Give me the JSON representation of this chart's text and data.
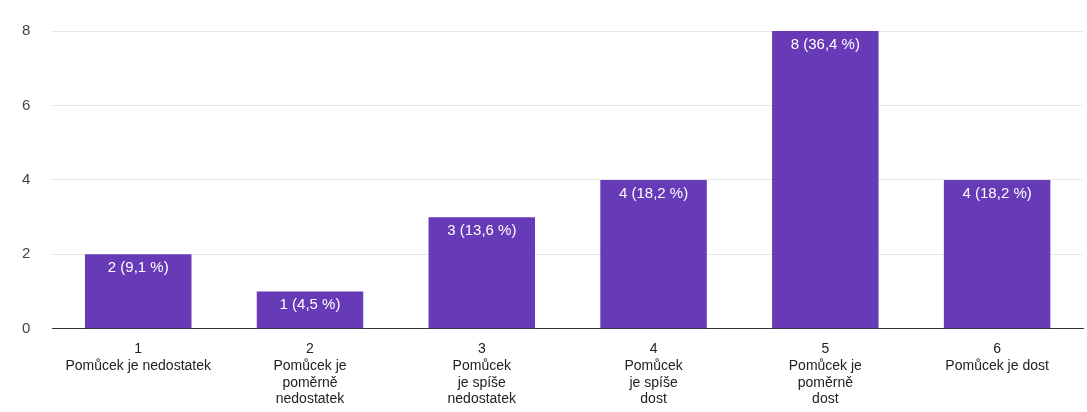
{
  "chart_data": {
    "type": "bar",
    "categories": [
      "1\nPomůcek je nedostatek",
      "2\nPomůcek je\npoměrně\nnedostatek",
      "3\nPomůcek\nje spíše\nnedostatek",
      "4\nPomůcek\nje spíše\ndost",
      "5\nPomůcek je\npoměrně\ndost",
      "6\nPomůcek je dost"
    ],
    "values": [
      2,
      1,
      3,
      4,
      8,
      4
    ],
    "value_labels": [
      "2 (9,1 %)",
      "1 (4,5 %)",
      "3 (13,6 %)",
      "4 (18,2 %)",
      "8 (36,4 %)",
      "4 (18,2 %)"
    ],
    "color": "#673ab7",
    "ylim": [
      0,
      8
    ],
    "yticks": [
      0,
      2,
      4,
      6,
      8
    ],
    "grid": "y",
    "legend": false
  }
}
